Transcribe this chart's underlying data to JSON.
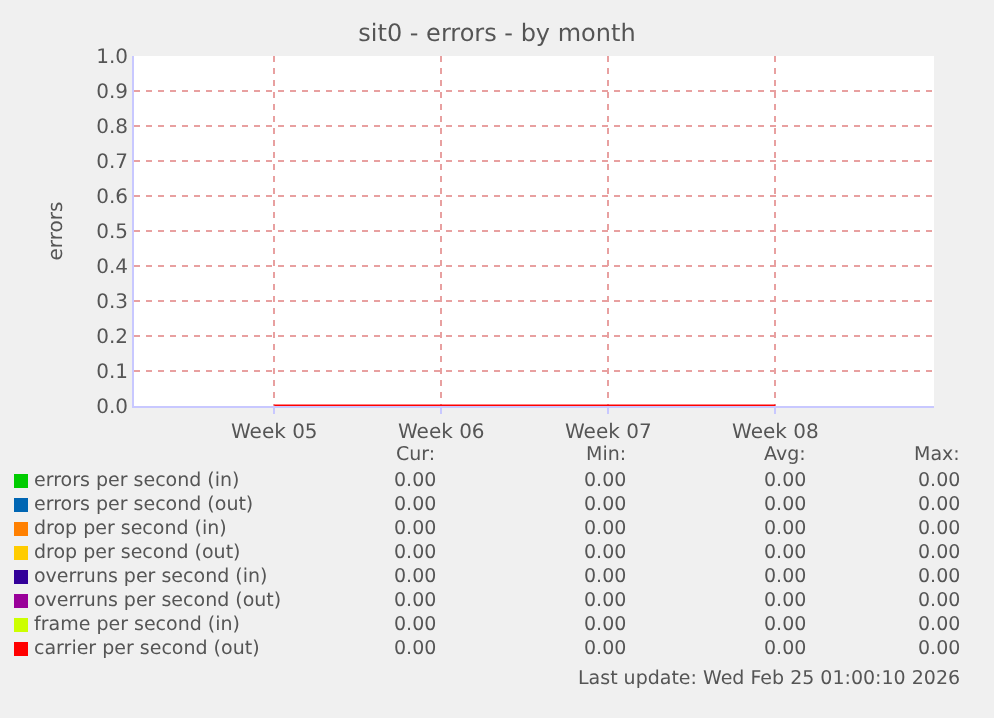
{
  "chart_data": {
    "type": "line",
    "title": "sit0 - errors - by month",
    "ylabel": "errors",
    "categories": [
      "Week 05",
      "Week 06",
      "Week 07",
      "Week 08"
    ],
    "ylim": [
      0,
      1
    ],
    "yticks": [
      {
        "value": 0,
        "label": "0.0"
      },
      {
        "value": 0.1,
        "label": "0.1"
      },
      {
        "value": 0.2,
        "label": "0.2"
      },
      {
        "value": 0.3,
        "label": "0.3"
      },
      {
        "value": 0.4,
        "label": "0.4"
      },
      {
        "value": 0.5,
        "label": "0.5"
      },
      {
        "value": 0.6,
        "label": "0.6"
      },
      {
        "value": 0.7,
        "label": "0.7"
      },
      {
        "value": 0.8,
        "label": "0.8"
      },
      {
        "value": 0.9,
        "label": "0.9"
      },
      {
        "value": 1,
        "label": "1.0"
      }
    ],
    "grid": true,
    "legend": "bottom left",
    "marker": "none",
    "line_style": "solid",
    "series": [
      {
        "name": "errors per second (in)",
        "color": "#00cc00",
        "values": [
          null,
          null,
          null,
          null
        ]
      },
      {
        "name": "errors per second (out)",
        "color": "#0066b3",
        "values": [
          null,
          null,
          null,
          null
        ]
      },
      {
        "name": "drop per second (in)",
        "color": "#ff8000",
        "values": [
          null,
          null,
          null,
          null
        ]
      },
      {
        "name": "drop per second (out)",
        "color": "#ffcc00",
        "values": [
          null,
          null,
          null,
          null
        ]
      },
      {
        "name": "overruns per second (in)",
        "color": "#330099",
        "values": [
          null,
          null,
          null,
          null
        ]
      },
      {
        "name": "overruns per second (out)",
        "color": "#990099",
        "values": [
          null,
          null,
          null,
          null
        ]
      },
      {
        "name": "frame per second (in)",
        "color": "#ccff00",
        "values": [
          null,
          null,
          null,
          null
        ]
      },
      {
        "name": "carrier per second (out)",
        "color": "#ff0000",
        "values": [
          0,
          0,
          0,
          0
        ]
      }
    ],
    "annotations": [
      "Cur:",
      "Min:",
      "Avg:",
      "Max:",
      "0.00",
      "0.00",
      "0.00",
      "0.00",
      "0.00",
      "0.00",
      "0.00",
      "0.00",
      "0.00",
      "0.00",
      "0.00",
      "0.00",
      "0.00",
      "0.00",
      "0.00",
      "0.00",
      "0.00",
      "0.00",
      "0.00",
      "0.00",
      "0.00",
      "0.00",
      "0.00",
      "0.00",
      "0.00",
      "0.00",
      "0.00",
      "0.00",
      "0.00",
      "0.00",
      "0.00",
      "0.00",
      "Last update: Wed Feb 25 01:00:10 2026"
    ]
  }
}
